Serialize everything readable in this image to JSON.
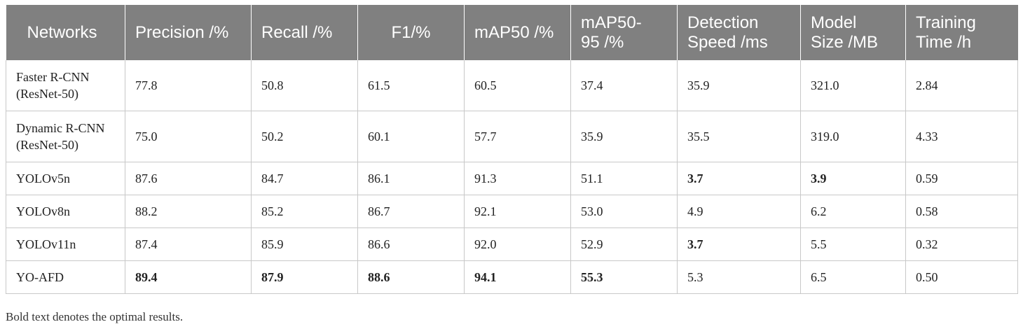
{
  "table": {
    "headers": [
      "Networks",
      "Precision /%",
      "Recall /%",
      "F1/%",
      "mAP50 /%",
      "mAP50-\n95 /%",
      "Detection\nSpeed /ms",
      "Model\nSize /MB",
      "Training\nTime /h"
    ],
    "rows": [
      {
        "cells": [
          "Faster R-CNN\n(ResNet-50)",
          "77.8",
          "50.8",
          "61.5",
          "60.5",
          "37.4",
          "35.9",
          "321.0",
          "2.84"
        ],
        "bold": []
      },
      {
        "cells": [
          "Dynamic R-CNN\n(ResNet-50)",
          "75.0",
          "50.2",
          "60.1",
          "57.7",
          "35.9",
          "35.5",
          "319.0",
          "4.33"
        ],
        "bold": []
      },
      {
        "cells": [
          "YOLOv5n",
          "87.6",
          "84.7",
          "86.1",
          "91.3",
          "51.1",
          "3.7",
          "3.9",
          "0.59"
        ],
        "bold": [
          6,
          7
        ]
      },
      {
        "cells": [
          "YOLOv8n",
          "88.2",
          "85.2",
          "86.7",
          "92.1",
          "53.0",
          "4.9",
          "6.2",
          "0.58"
        ],
        "bold": []
      },
      {
        "cells": [
          "YOLOv11n",
          "87.4",
          "85.9",
          "86.6",
          "92.0",
          "52.9",
          "3.7",
          "5.5",
          "0.32"
        ],
        "bold": [
          6
        ]
      },
      {
        "cells": [
          "YO-AFD",
          "89.4",
          "87.9",
          "88.6",
          "94.1",
          "55.3",
          "5.3",
          "6.5",
          "0.50"
        ],
        "bold": [
          1,
          2,
          3,
          4,
          5
        ]
      }
    ]
  },
  "footnote": "Bold text denotes the optimal results.",
  "colors": {
    "header_bg": "#808080",
    "header_text": "#ffffff",
    "border": "#c8c8c8"
  }
}
